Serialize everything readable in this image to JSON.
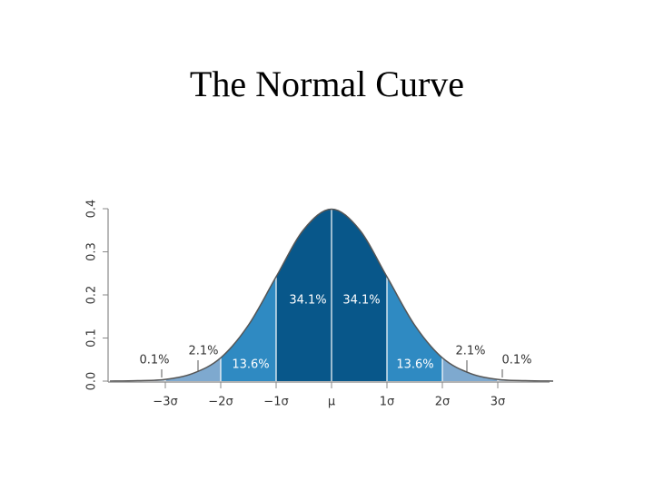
{
  "chart_data": {
    "type": "area",
    "title": "The Normal Curve",
    "x": [
      -4,
      -3.5,
      -3,
      -2.5,
      -2,
      -1.5,
      -1,
      -0.5,
      0,
      0.5,
      1,
      1.5,
      2,
      2.5,
      3,
      3.5,
      4
    ],
    "values": [
      0,
      0.001,
      0.004,
      0.018,
      0.054,
      0.13,
      0.242,
      0.352,
      0.399,
      0.352,
      0.242,
      0.13,
      0.054,
      0.018,
      0.004,
      0.001,
      0
    ],
    "color": "#555555",
    "xlim": [
      -4,
      4
    ],
    "xticks": [
      {
        "value": -3,
        "label": "−3σ"
      },
      {
        "value": -2,
        "label": "−2σ"
      },
      {
        "value": -1,
        "label": "−1σ"
      },
      {
        "value": 0,
        "label": "μ"
      },
      {
        "value": 1,
        "label": "1σ"
      },
      {
        "value": 2,
        "label": "2σ"
      },
      {
        "value": 3,
        "label": "3σ"
      }
    ],
    "ylim": [
      0,
      0.4
    ],
    "yticks": [
      {
        "value": 0,
        "label": "0.0"
      },
      0.1,
      0.2,
      0.3,
      0.4
    ],
    "bands": {
      "values": [
        0.1,
        2.1,
        13.6,
        34.1,
        34.1,
        13.6,
        2.1,
        0.1
      ],
      "value_labels": [
        "0.1%",
        "2.1%",
        "13.6%",
        "34.1%",
        "34.1%",
        "13.6%",
        "2.1%",
        "0.1%"
      ],
      "colors": [
        "#b9d0e4",
        "#7ea9cf",
        "#2f8ac2",
        "#08578a",
        "#08578a",
        "#2f8ac2",
        "#7ea9cf",
        "#b9d0e4"
      ]
    }
  }
}
